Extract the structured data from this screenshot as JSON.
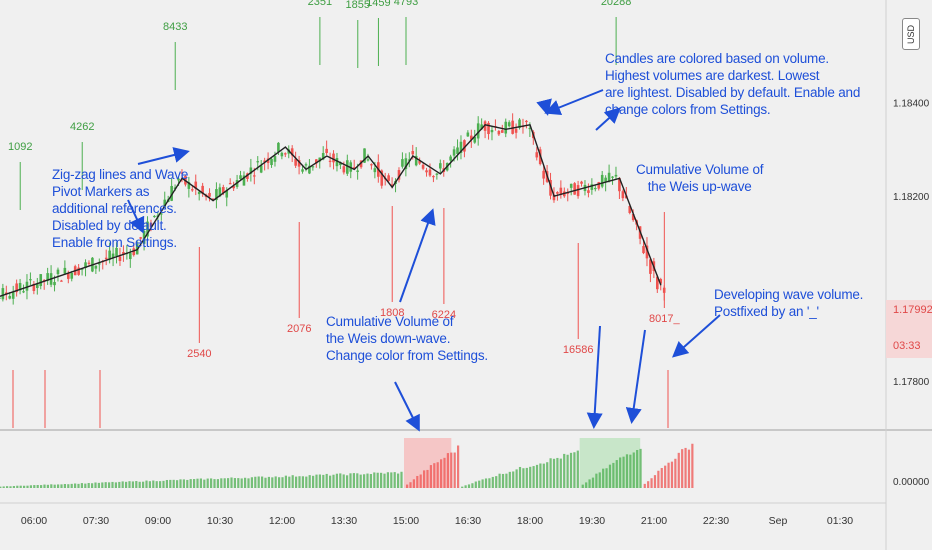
{
  "header": {
    "currency_label": "USD"
  },
  "price_label": {
    "price": "1.17992",
    "countdown": "03:33"
  },
  "annotations": {
    "zigzag": "Zig-zag lines and Wave\nPivot Markers as\nadditional references.\nDisabled by default.\nEnable from Settings.",
    "candles": "Candles are colored based on volume.\nHighest volumes are darkest. Lowest\nare lightest. Disabled by default. Enable and\nchange colors from Settings.",
    "upwave": "Cumulative Volume of\nthe Weis up-wave",
    "downwave": "Cumulative Volume of\nthe Weis down-wave.\nChange color from Settings.",
    "developing": "Developing wave volume.\nPostfixed by an '_'"
  },
  "colors": {
    "up": "#4caf50",
    "down": "#ef5350",
    "zigzag": "#222222",
    "annotation": "#1e4fd8",
    "background": "#f0f0f0",
    "up_fill": "#c8e6c9",
    "down_fill": "#f5c6c6"
  },
  "chart_data": [
    {
      "type": "line",
      "title": "",
      "y_ticks": [
        "1.18400",
        "1.18200",
        "1.17800"
      ],
      "ylim": [
        1.1768,
        1.1864
      ],
      "x_ticks": [
        "06:00",
        "07:30",
        "09:00",
        "10:30",
        "12:00",
        "13:30",
        "15:00",
        "16:30",
        "18:00",
        "19:30",
        "21:00",
        "22:30",
        "Sep",
        "01:30"
      ],
      "zigzag_pivots": [
        {
          "label": "05:00",
          "price": 1.1797
        },
        {
          "label": "08:30",
          "price": 1.1808
        },
        {
          "label": "09:35",
          "price": 1.1824
        },
        {
          "label": "10:20",
          "price": 1.1819
        },
        {
          "label": "12:05",
          "price": 1.1831
        },
        {
          "label": "12:35",
          "price": 1.1826
        },
        {
          "label": "13:05",
          "price": 1.1829
        },
        {
          "label": "13:45",
          "price": 1.1826
        },
        {
          "label": "14:05",
          "price": 1.1829
        },
        {
          "label": "14:40",
          "price": 1.1822
        },
        {
          "label": "15:10",
          "price": 1.1829
        },
        {
          "label": "15:50",
          "price": 1.1825
        },
        {
          "label": "16:55",
          "price": 1.1836
        },
        {
          "label": "17:25",
          "price": 1.1835
        },
        {
          "label": "18:00",
          "price": 1.1836
        },
        {
          "label": "18:35",
          "price": 1.182
        },
        {
          "label": "20:10",
          "price": 1.1824
        },
        {
          "label": "21:10",
          "price": 1.18
        }
      ],
      "up_wave_volumes": [
        {
          "value": "1092",
          "label": "05:40"
        },
        {
          "value": "4262",
          "label": "07:10"
        },
        {
          "value": "8433",
          "label": "09:25"
        },
        {
          "value": "2351",
          "label": "12:55"
        },
        {
          "value": "1855",
          "label": "13:50"
        },
        {
          "value": "1459",
          "label": "14:20"
        },
        {
          "value": "4793",
          "label": "15:00"
        },
        {
          "value": "20288",
          "label": "20:05"
        }
      ],
      "down_wave_volumes": [
        {
          "value": "2540",
          "label": "10:00"
        },
        {
          "value": "2076",
          "label": "12:25"
        },
        {
          "value": "1808",
          "label": "14:40"
        },
        {
          "value": "6224",
          "label": "15:55"
        },
        {
          "value": "16586",
          "label": "19:10"
        },
        {
          "value": "8017_",
          "label": "21:15"
        }
      ]
    },
    {
      "type": "bar",
      "title": "",
      "y_ticks": [
        "0.00000"
      ],
      "series": [
        {
          "name": "",
          "color": "up",
          "x_range": [
            "04:30",
            "15:00"
          ],
          "peak": 0.35
        },
        {
          "name": "",
          "color": "down",
          "x_range": [
            "15:00",
            "16:20"
          ],
          "peak": 0.9
        },
        {
          "name": "",
          "color": "up",
          "x_range": [
            "16:20",
            "19:15"
          ],
          "peak": 0.8
        },
        {
          "name": "",
          "color": "up",
          "x_range": [
            "19:15",
            "20:45"
          ],
          "peak": 0.95
        },
        {
          "name": "",
          "color": "down",
          "x_range": [
            "20:45",
            "22:00"
          ],
          "peak": 1.0
        }
      ]
    }
  ]
}
